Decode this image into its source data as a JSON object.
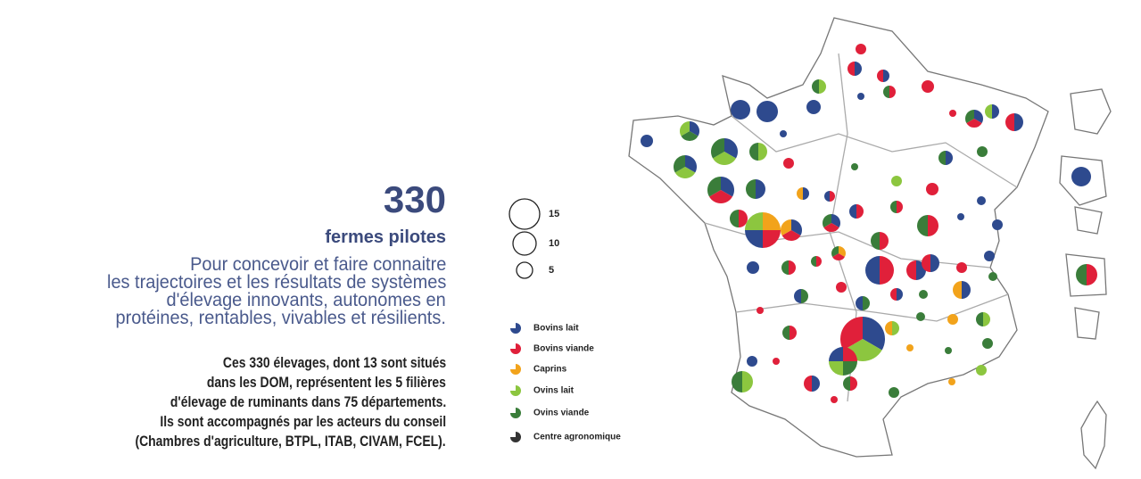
{
  "headline": {
    "number": "330",
    "subtitle": "fermes pilotes",
    "lead": [
      "Pour concevoir et faire connaitre",
      "les trajectoires et les résultats de systèmes",
      "d'élevage innovants, autonomes en",
      "protéines, rentables, vivables et résilients."
    ]
  },
  "body": [
    "Ces 330 élevages, dont 13 sont situés",
    "dans les DOM, représentent les 5 filières",
    "d'élevage de ruminants dans 75 départements.",
    "Ils sont accompagnés par les acteurs du conseil",
    "(Chambres d'agriculture, BTPL, ITAB, CIVAM, FCEL)."
  ],
  "size_legend": [
    "15",
    "10",
    "5"
  ],
  "legend": [
    {
      "label": "Bovins lait",
      "color": "#2e4a8e"
    },
    {
      "label": "Bovins viande",
      "color": "#e0203a"
    },
    {
      "label": "Caprins",
      "color": "#f2a31b"
    },
    {
      "label": "Ovins lait",
      "color": "#8cc63f"
    },
    {
      "label": "Ovins viande",
      "color": "#3a7d3a"
    },
    {
      "label": "Centre agronomique",
      "color": "#333333"
    }
  ]
}
